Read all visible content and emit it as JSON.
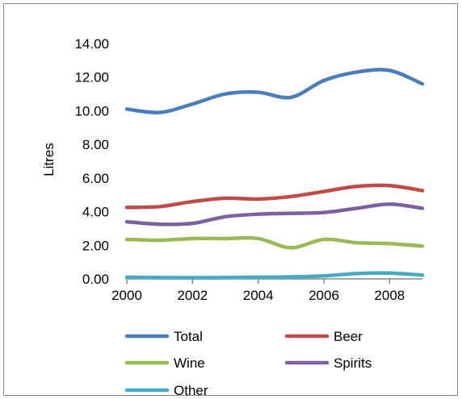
{
  "chart_data": {
    "type": "line",
    "title": "",
    "xlabel": "",
    "ylabel": "Litres",
    "xlim": [
      2000,
      2009
    ],
    "ylim": [
      0,
      14
    ],
    "x": [
      2000,
      2001,
      2002,
      2003,
      2004,
      2005,
      2006,
      2007,
      2008,
      2009
    ],
    "x_ticks": [
      "2000",
      "2002",
      "2004",
      "2006",
      "2008"
    ],
    "y_ticks": [
      "0.00",
      "2.00",
      "4.00",
      "6.00",
      "8.00",
      "10.00",
      "12.00",
      "14.00"
    ],
    "grid": false,
    "legend_position": "bottom",
    "series": [
      {
        "name": "Total",
        "color": "#4a7ebb",
        "values": [
          10.1,
          9.9,
          10.4,
          11.0,
          11.1,
          10.8,
          11.8,
          12.3,
          12.4,
          11.6
        ]
      },
      {
        "name": "Beer",
        "color": "#be4b48",
        "values": [
          4.25,
          4.3,
          4.6,
          4.8,
          4.75,
          4.9,
          5.2,
          5.5,
          5.55,
          5.25
        ]
      },
      {
        "name": "Wine",
        "color": "#98b954",
        "values": [
          2.35,
          2.3,
          2.4,
          2.4,
          2.4,
          1.85,
          2.35,
          2.15,
          2.1,
          1.95
        ]
      },
      {
        "name": "Spirits",
        "color": "#7d60a0",
        "values": [
          3.4,
          3.25,
          3.3,
          3.7,
          3.85,
          3.9,
          3.95,
          4.2,
          4.45,
          4.2
        ]
      },
      {
        "name": "Other",
        "color": "#46aac5",
        "values": [
          0.1,
          0.08,
          0.07,
          0.08,
          0.1,
          0.12,
          0.18,
          0.32,
          0.35,
          0.22
        ]
      }
    ]
  }
}
